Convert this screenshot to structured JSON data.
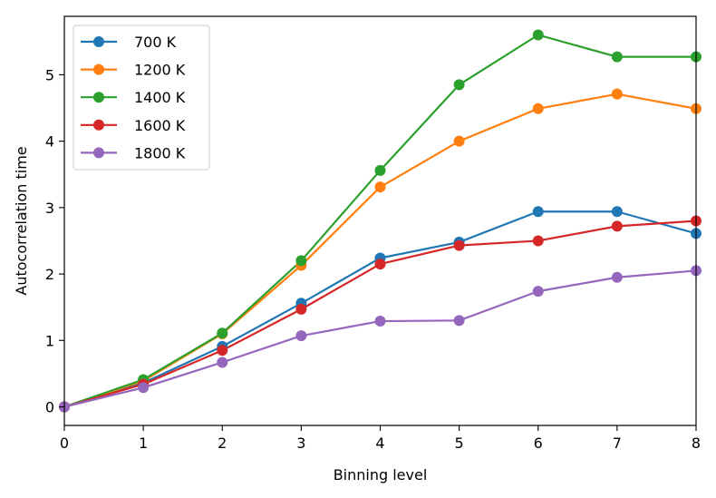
{
  "chart_data": {
    "type": "line",
    "title": "",
    "xlabel": "Binning level",
    "ylabel": "Autocorrelation time",
    "x": [
      0,
      1,
      2,
      3,
      4,
      5,
      6,
      7,
      8
    ],
    "xlim": [
      0,
      8
    ],
    "ylim": [
      -0.28,
      5.88
    ],
    "xticks": [
      "0",
      "1",
      "2",
      "3",
      "4",
      "5",
      "6",
      "7",
      "8"
    ],
    "yticks": [
      "0",
      "1",
      "2",
      "3",
      "4",
      "5"
    ],
    "grid": false,
    "legend_position": "top-left",
    "series": [
      {
        "name": "700 K",
        "color": "#1f77b4",
        "values": [
          0,
          0.36,
          0.91,
          1.56,
          2.24,
          2.48,
          2.94,
          2.94,
          2.61
        ]
      },
      {
        "name": "1200 K",
        "color": "#ff7f0e",
        "values": [
          0,
          0.39,
          1.1,
          2.13,
          3.31,
          4.0,
          4.49,
          4.71,
          4.49
        ]
      },
      {
        "name": "1400 K",
        "color": "#2ca02c",
        "values": [
          0,
          0.41,
          1.11,
          2.2,
          3.56,
          4.85,
          5.6,
          5.27,
          5.27
        ]
      },
      {
        "name": "1600 K",
        "color": "#d62728",
        "values": [
          0,
          0.34,
          0.85,
          1.47,
          2.15,
          2.43,
          2.5,
          2.72,
          2.8
        ]
      },
      {
        "name": "1800 K",
        "color": "#9467bd",
        "values": [
          0,
          0.29,
          0.67,
          1.07,
          1.29,
          1.3,
          1.74,
          1.95,
          2.05
        ]
      }
    ]
  }
}
